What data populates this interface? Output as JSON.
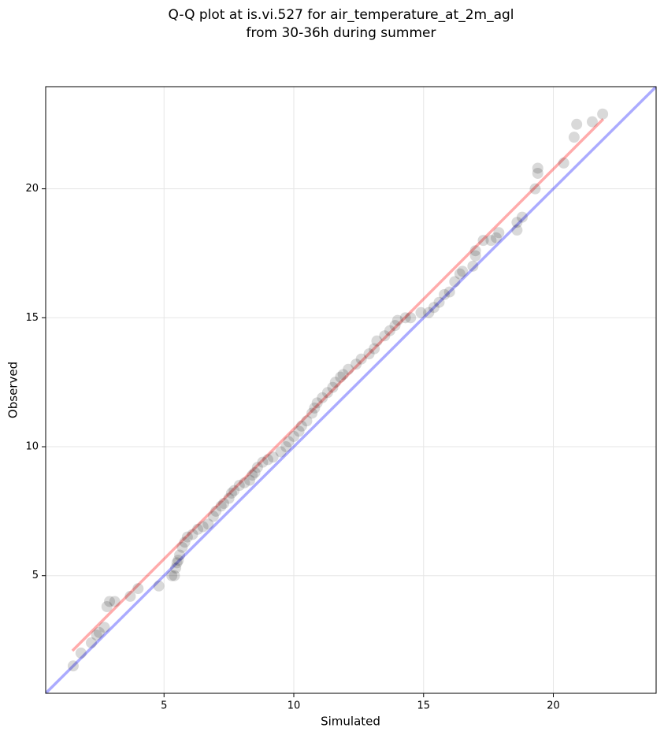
{
  "chart_data": {
    "type": "scatter",
    "title": [
      "Q-Q plot at is.vi.527 for air_temperature_at_2m_agl",
      "from 30-36h during summer"
    ],
    "x_label": "Simulated",
    "y_label": "Observed",
    "xlim": [
      0.44,
      23.96
    ],
    "ylim": [
      0.44,
      23.96
    ],
    "xticks": [
      5,
      10,
      15,
      20
    ],
    "yticks": [
      5,
      10,
      15,
      20
    ],
    "grid": true,
    "color": "#000000",
    "x": [
      1.5,
      1.8,
      2.2,
      2.4,
      2.5,
      2.7,
      2.8,
      2.9,
      3.1,
      3.7,
      4.0,
      4.8,
      5.3,
      5.4,
      5.45,
      5.5,
      5.55,
      5.6,
      5.7,
      5.8,
      5.9,
      6.1,
      6.3,
      6.5,
      6.7,
      6.9,
      7.0,
      7.2,
      7.3,
      7.5,
      7.6,
      7.7,
      7.9,
      8.1,
      8.3,
      8.4,
      8.5,
      8.6,
      8.8,
      9.0,
      9.2,
      9.5,
      9.7,
      9.8,
      10.0,
      10.2,
      10.3,
      10.5,
      10.7,
      10.8,
      10.9,
      11.1,
      11.3,
      11.5,
      11.6,
      11.8,
      11.9,
      12.1,
      12.4,
      12.6,
      12.9,
      13.1,
      13.2,
      13.5,
      13.7,
      13.9,
      14.0,
      14.3,
      14.5,
      14.9,
      15.2,
      15.4,
      15.6,
      15.8,
      16.0,
      16.2,
      16.4,
      16.5,
      16.9,
      17.0,
      17.0,
      17.3,
      17.6,
      17.8,
      17.9,
      18.6,
      18.6,
      18.8,
      19.3,
      19.4,
      19.4,
      20.4,
      20.8,
      20.9,
      21.5,
      21.9
    ],
    "y": [
      1.5,
      2.0,
      2.4,
      2.7,
      2.8,
      3.0,
      3.8,
      4.0,
      4.0,
      4.2,
      4.5,
      4.6,
      5.0,
      5.0,
      5.3,
      5.5,
      5.6,
      5.8,
      6.1,
      6.3,
      6.5,
      6.6,
      6.8,
      6.9,
      7.0,
      7.3,
      7.5,
      7.7,
      7.8,
      8.0,
      8.2,
      8.3,
      8.5,
      8.6,
      8.7,
      8.9,
      9.0,
      9.2,
      9.4,
      9.5,
      9.6,
      9.8,
      10.0,
      10.2,
      10.4,
      10.6,
      10.8,
      11.0,
      11.3,
      11.5,
      11.7,
      11.9,
      12.1,
      12.3,
      12.5,
      12.7,
      12.8,
      13.0,
      13.2,
      13.4,
      13.6,
      13.8,
      14.1,
      14.3,
      14.5,
      14.7,
      14.9,
      15.0,
      15.0,
      15.2,
      15.2,
      15.4,
      15.6,
      15.9,
      16.0,
      16.4,
      16.7,
      16.8,
      17.0,
      17.4,
      17.6,
      18.0,
      18.0,
      18.1,
      18.3,
      18.4,
      18.7,
      18.9,
      20.0,
      20.6,
      20.8,
      21.0,
      22.0,
      22.5,
      22.6,
      22.9
    ],
    "lines": [
      {
        "color": "#ff0000",
        "x": [
          1.47,
          21.92
        ],
        "y": [
          2.09,
          22.7
        ]
      },
      {
        "color": "#0000ff",
        "x": [
          0.44,
          23.96
        ],
        "y": [
          0.44,
          23.96
        ]
      }
    ]
  }
}
